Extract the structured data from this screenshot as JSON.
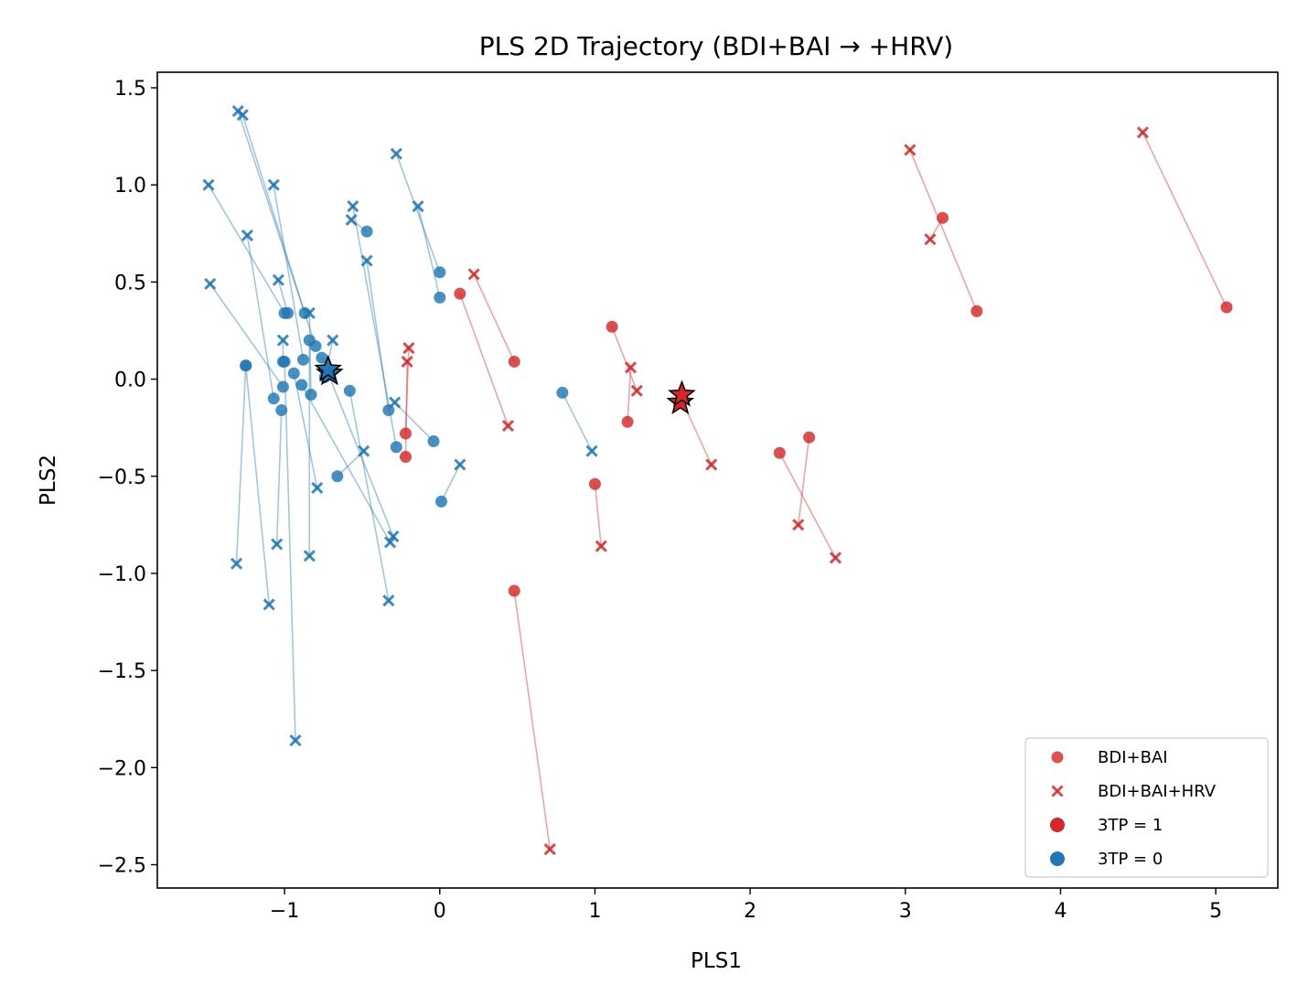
{
  "chart_data": {
    "type": "scatter",
    "title": "PLS 2D Trajectory (BDI+BAI → +HRV)",
    "xlabel": "PLS1",
    "ylabel": "PLS2",
    "xlim": [
      -1.82,
      5.4
    ],
    "ylim": [
      -2.62,
      1.58
    ],
    "xticks": [
      -1,
      0,
      1,
      2,
      3,
      4,
      5
    ],
    "xtick_labels": [
      "−1",
      "0",
      "1",
      "2",
      "3",
      "4",
      "5"
    ],
    "yticks": [
      -2.5,
      -2.0,
      -1.5,
      -1.0,
      -0.5,
      0.0,
      0.5,
      1.0,
      1.5
    ],
    "ytick_labels": [
      "−2.5",
      "−2.0",
      "−1.5",
      "−1.0",
      "−0.5",
      "0.0",
      "0.5",
      "1.0",
      "1.5"
    ],
    "colors": {
      "class1": "#d62728",
      "class0": "#1f77b4"
    },
    "legend": {
      "position": "lower-right",
      "entries": [
        {
          "label": "BDI+BAI",
          "marker": "circle",
          "color": "#d62728"
        },
        {
          "label": "BDI+BAI+HRV",
          "marker": "x",
          "color": "#d62728"
        },
        {
          "label": "3TP = 1",
          "marker": "circle",
          "color": "#d62728"
        },
        {
          "label": "3TP = 0",
          "marker": "circle",
          "color": "#1f77b4"
        }
      ]
    },
    "trajectories": [
      {
        "class": 1,
        "from": [
          5.07,
          0.37
        ],
        "to": [
          4.53,
          1.27
        ]
      },
      {
        "class": 1,
        "from": [
          3.46,
          0.35
        ],
        "to": [
          3.03,
          1.18
        ]
      },
      {
        "class": 1,
        "from": [
          3.24,
          0.83
        ],
        "to": [
          3.16,
          0.72
        ]
      },
      {
        "class": 1,
        "from": [
          2.38,
          -0.3
        ],
        "to": [
          2.31,
          -0.75
        ]
      },
      {
        "class": 1,
        "from": [
          2.19,
          -0.38
        ],
        "to": [
          2.55,
          -0.92
        ]
      },
      {
        "class": 1,
        "from": [
          1.56,
          -0.11
        ],
        "to": [
          1.75,
          -0.44
        ]
      },
      {
        "class": 1,
        "from": [
          1.21,
          -0.22
        ],
        "to": [
          1.23,
          0.06
        ]
      },
      {
        "class": 1,
        "from": [
          1.11,
          0.27
        ],
        "to": [
          1.27,
          -0.06
        ]
      },
      {
        "class": 1,
        "from": [
          1.0,
          -0.54
        ],
        "to": [
          1.04,
          -0.86
        ]
      },
      {
        "class": 1,
        "from": [
          0.48,
          0.09
        ],
        "to": [
          0.22,
          0.54
        ]
      },
      {
        "class": 1,
        "from": [
          0.13,
          0.44
        ],
        "to": [
          0.44,
          -0.24
        ]
      },
      {
        "class": 1,
        "from": [
          0.48,
          -1.09
        ],
        "to": [
          0.71,
          -2.42
        ]
      },
      {
        "class": 1,
        "from": [
          -0.22,
          -0.28
        ],
        "to": [
          -0.2,
          0.16
        ]
      },
      {
        "class": 1,
        "from": [
          -0.22,
          -0.4
        ],
        "to": [
          -0.21,
          0.09
        ]
      },
      {
        "class": 0,
        "from": [
          0.0,
          0.55
        ],
        "to": [
          -0.28,
          1.16
        ]
      },
      {
        "class": 0,
        "from": [
          0.0,
          0.42
        ],
        "to": [
          -0.14,
          0.89
        ]
      },
      {
        "class": 0,
        "from": [
          0.79,
          -0.07
        ],
        "to": [
          0.98,
          -0.37
        ]
      },
      {
        "class": 0,
        "from": [
          0.01,
          -0.63
        ],
        "to": [
          0.13,
          -0.44
        ]
      },
      {
        "class": 0,
        "from": [
          -0.04,
          -0.32
        ],
        "to": [
          -0.29,
          -0.12
        ]
      },
      {
        "class": 0,
        "from": [
          -0.28,
          -0.35
        ],
        "to": [
          -0.56,
          0.89
        ]
      },
      {
        "class": 0,
        "from": [
          -0.47,
          0.76
        ],
        "to": [
          -0.57,
          0.82
        ]
      },
      {
        "class": 0,
        "from": [
          -0.33,
          -0.16
        ],
        "to": [
          -0.47,
          0.61
        ]
      },
      {
        "class": 0,
        "from": [
          -0.58,
          -0.06
        ],
        "to": [
          -0.33,
          -1.14
        ]
      },
      {
        "class": 0,
        "from": [
          -0.66,
          -0.5
        ],
        "to": [
          -0.49,
          -0.37
        ]
      },
      {
        "class": 0,
        "from": [
          -0.74,
          0.01
        ],
        "to": [
          -0.69,
          0.2
        ]
      },
      {
        "class": 0,
        "from": [
          -0.76,
          0.11
        ],
        "to": [
          -0.3,
          -0.81
        ]
      },
      {
        "class": 0,
        "from": [
          -0.8,
          0.17
        ],
        "to": [
          -1.3,
          1.38
        ]
      },
      {
        "class": 0,
        "from": [
          -0.83,
          -0.08
        ],
        "to": [
          -0.84,
          0.34
        ]
      },
      {
        "class": 0,
        "from": [
          -0.84,
          0.2
        ],
        "to": [
          -0.84,
          -0.91
        ]
      },
      {
        "class": 0,
        "from": [
          -0.87,
          0.34
        ],
        "to": [
          -1.27,
          1.36
        ]
      },
      {
        "class": 0,
        "from": [
          -0.88,
          0.1
        ],
        "to": [
          -1.07,
          1.0
        ]
      },
      {
        "class": 0,
        "from": [
          -0.89,
          -0.03
        ],
        "to": [
          -0.32,
          -0.84
        ]
      },
      {
        "class": 0,
        "from": [
          -0.94,
          0.03
        ],
        "to": [
          -0.79,
          -0.56
        ]
      },
      {
        "class": 0,
        "from": [
          -0.98,
          0.34
        ],
        "to": [
          -1.04,
          0.51
        ]
      },
      {
        "class": 0,
        "from": [
          -1.0,
          0.34
        ],
        "to": [
          -1.49,
          1.0
        ]
      },
      {
        "class": 0,
        "from": [
          -1.01,
          0.09
        ],
        "to": [
          -1.01,
          0.2
        ]
      },
      {
        "class": 0,
        "from": [
          -1.01,
          -0.04
        ],
        "to": [
          -1.48,
          0.49
        ]
      },
      {
        "class": 0,
        "from": [
          -1.02,
          -0.16
        ],
        "to": [
          -1.05,
          -0.85
        ]
      },
      {
        "class": 0,
        "from": [
          -1.07,
          -0.1
        ],
        "to": [
          -1.24,
          0.74
        ]
      },
      {
        "class": 0,
        "from": [
          -1.25,
          0.07
        ],
        "to": [
          -1.31,
          -0.95
        ]
      },
      {
        "class": 0,
        "from": [
          -1.25,
          0.07
        ],
        "to": [
          -1.1,
          -1.16
        ]
      },
      {
        "class": 0,
        "from": [
          -1.0,
          0.09
        ],
        "to": [
          -0.93,
          -1.86
        ]
      }
    ],
    "centroids": [
      {
        "label": "3TP = 1 BDI+BAI centroid",
        "class": 1,
        "point": [
          1.55,
          -0.12
        ]
      },
      {
        "label": "3TP = 1 BDI+BAI+HRV centroid",
        "class": 1,
        "point": [
          1.56,
          -0.08
        ]
      },
      {
        "label": "3TP = 0 BDI+BAI centroid",
        "class": 0,
        "point": [
          -0.71,
          0.03
        ]
      },
      {
        "label": "3TP = 0 BDI+BAI+HRV centroid",
        "class": 0,
        "point": [
          -0.72,
          0.05
        ]
      }
    ]
  }
}
